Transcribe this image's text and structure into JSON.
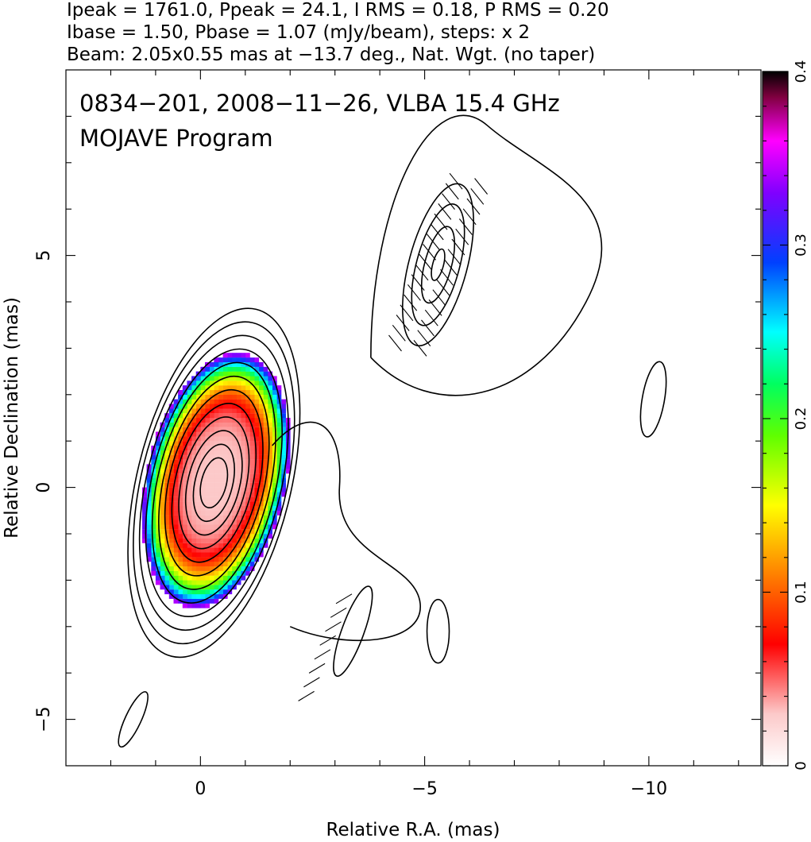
{
  "header": {
    "line1": "Ipeak = 1761.0, Ppeak = 24.1, I RMS = 0.18, P RMS = 0.20",
    "line2": "Ibase = 1.50, Pbase = 1.07 (mJy/beam), steps: x 2",
    "line3": "Beam: 2.05x0.55 mas at −13.7 deg., Nat. Wgt. (no taper)"
  },
  "annotation": {
    "source_line": "0834−201, 2008−11−26, VLBA 15.4 GHz",
    "program_line": "MOJAVE Program"
  },
  "chart_data": {
    "type": "heatmap",
    "title": "",
    "xlabel": "Relative R.A. (mas)",
    "ylabel": "Relative Declination (mas)",
    "xlim": [
      3,
      -12.5
    ],
    "ylim": [
      -6,
      9
    ],
    "x_ticks": [
      {
        "value": 0,
        "label": "0"
      },
      {
        "value": -5,
        "label": "−5"
      },
      {
        "value": -10,
        "label": "−10"
      }
    ],
    "y_ticks": [
      {
        "value": -5,
        "label": "−5"
      },
      {
        "value": 0,
        "label": "0"
      },
      {
        "value": 5,
        "label": "5"
      }
    ],
    "colorbar": {
      "range": [
        0,
        0.4
      ],
      "ticks": [
        {
          "value": 0,
          "label": "0"
        },
        {
          "value": 0.1,
          "label": "0.1"
        },
        {
          "value": 0.2,
          "label": "0.2"
        },
        {
          "value": 0.3,
          "label": "0.3"
        },
        {
          "value": 0.4,
          "label": "0.4"
        }
      ]
    },
    "core_contours": {
      "center": [
        -0.3,
        0.1
      ],
      "angle_deg": -13.7,
      "radii": [
        [
          0.28,
          0.55
        ],
        [
          0.42,
          0.85
        ],
        [
          0.58,
          1.15
        ],
        [
          0.72,
          1.45
        ],
        [
          0.86,
          1.75
        ],
        [
          1.0,
          2.05
        ],
        [
          1.12,
          2.35
        ],
        [
          1.25,
          2.65
        ],
        [
          1.38,
          2.95
        ],
        [
          1.5,
          3.25
        ],
        [
          1.62,
          3.55
        ],
        [
          1.72,
          3.85
        ]
      ]
    },
    "jet_contours": {
      "center": [
        -5.3,
        4.8
      ],
      "angle_deg": -15,
      "radii": [
        [
          0.12,
          0.35
        ],
        [
          0.3,
          0.85
        ],
        [
          0.48,
          1.35
        ],
        [
          0.65,
          1.8
        ]
      ]
    },
    "fractional_polarization_region": {
      "center": [
        -0.3,
        0.1
      ],
      "angle_deg": -13.7,
      "radii": [
        1.55,
        2.8
      ],
      "fraction_inner": 0.03,
      "fraction_edge": 0.35
    }
  }
}
